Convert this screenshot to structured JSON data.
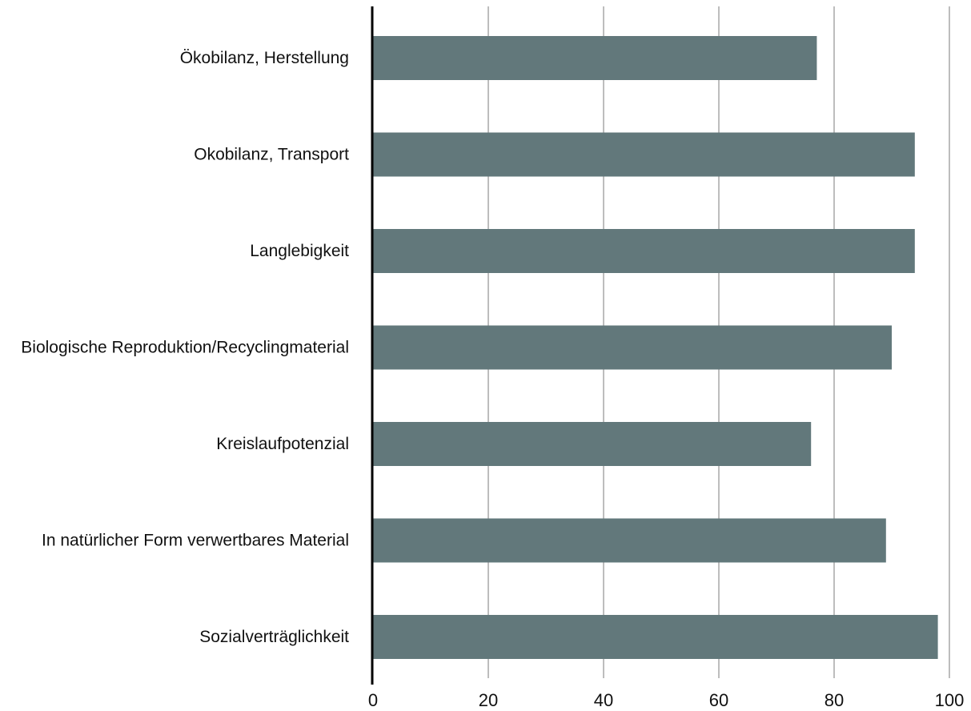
{
  "chart_data": {
    "type": "bar",
    "orientation": "horizontal",
    "categories": [
      "Ökobilanz, Herstellung",
      "Okobilanz, Transport",
      "Langlebigkeit",
      "Biologische Reproduktion/Recyclingmaterial",
      "Kreislaufpotenzial",
      "In natürlicher Form verwertbares Material",
      "Sozialverträglichkeit"
    ],
    "values": [
      77,
      94,
      94,
      90,
      76,
      89,
      98
    ],
    "xlim": [
      0,
      100
    ],
    "xticks": [
      0,
      20,
      40,
      60,
      80,
      100
    ],
    "grid": "vertical",
    "title": "",
    "xlabel": "",
    "ylabel": "",
    "colors": {
      "bar": "#62787b",
      "grid": "#bdbdbd",
      "axis": "#000000"
    }
  }
}
